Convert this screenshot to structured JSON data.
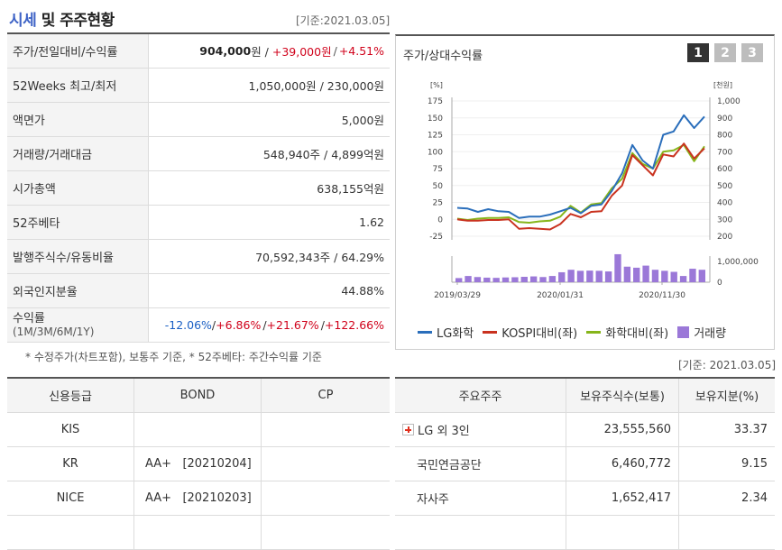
{
  "header": {
    "title_accent": "시세",
    "title_rest": " 및 주주현황",
    "ref_date": "[기준:2021.03.05]"
  },
  "summary": {
    "price_label": "주가/전일대비/수익률",
    "price": "904,000",
    "price_unit": "원 /",
    "change": "+39,000원",
    "change_sep": "/",
    "change_pct": "+4.51%",
    "week52_label": "52Weeks 최고/최저",
    "week52_value": "1,050,000원 / 230,000원",
    "face_label": "액면가",
    "face_value": "5,000원",
    "volume_label": "거래량/거래대금",
    "volume_value": "548,940주 / 4,899억원",
    "mcap_label": "시가총액",
    "mcap_value": "638,155억원",
    "beta_label": "52주베타",
    "beta_value": "1.62",
    "shares_label": "발행주식수/유동비율",
    "shares_value": "70,592,343주 / 64.29%",
    "foreign_label": "외국인지분율",
    "foreign_value": "44.88%",
    "returns_label": "수익률",
    "returns_sub": "(1M/3M/6M/1Y)",
    "return_1m": "-12.06%",
    "return_3m": "+6.86%",
    "return_6m": "+21.67%",
    "return_1y": "+122.66%",
    "slash": "/ "
  },
  "footnote": "* 수정주가(차트포함), 보통주 기준, * 52주베타: 주간수익률 기준",
  "credit": {
    "headers": [
      "신용등급",
      "BOND",
      "CP"
    ],
    "rows": [
      {
        "agency": "KIS",
        "bond": "",
        "cp": ""
      },
      {
        "agency": "KR",
        "bond": "AA+   [20210204]",
        "cp": ""
      },
      {
        "agency": "NICE",
        "bond": "AA+   [20210203]",
        "cp": ""
      },
      {
        "agency": "",
        "bond": "",
        "cp": ""
      }
    ]
  },
  "chart_panel": {
    "title": "주가/상대수익률",
    "tabs": [
      "1",
      "2",
      "3"
    ],
    "active_tab": 0
  },
  "chart_data": {
    "type": "line",
    "left_axis_unit": "[%]",
    "right_axis_unit": "[천원]",
    "left_ticks": [
      "175",
      "150",
      "125",
      "100",
      "75",
      "50",
      "25",
      "0",
      "-25"
    ],
    "right_ticks": [
      "1,000",
      "900",
      "800",
      "700",
      "600",
      "500",
      "400",
      "300",
      "200"
    ],
    "volume_ticks": [
      "1,000,000",
      "0"
    ],
    "x_labels": [
      "2019/03/29",
      "2020/01/31",
      "2020/11/30"
    ],
    "ylim_left": [
      -25,
      175
    ],
    "ylim_right": [
      200,
      1000
    ],
    "volume_max": 1000000,
    "series": [
      {
        "name": "LG화학",
        "color": "#2a6ebb",
        "axis": "left",
        "values": [
          17,
          16,
          11,
          15,
          12,
          11,
          2,
          4,
          4,
          7,
          12,
          17,
          9,
          20,
          22,
          42,
          68,
          110,
          87,
          75,
          125,
          130,
          154,
          135,
          152
        ]
      },
      {
        "name": "KOSPI대비(좌)",
        "color": "#c9321f",
        "axis": "left",
        "values": [
          0,
          -2,
          -2,
          -1,
          -1,
          0,
          -14,
          -13,
          -14,
          -15,
          -7,
          8,
          3,
          11,
          12,
          35,
          50,
          95,
          80,
          65,
          96,
          93,
          112,
          90,
          105
        ]
      },
      {
        "name": "화학대비(좌)",
        "color": "#86b51a",
        "axis": "left",
        "values": [
          1,
          -1,
          1,
          2,
          2,
          3,
          -4,
          -5,
          -3,
          -2,
          4,
          20,
          10,
          22,
          24,
          46,
          60,
          98,
          82,
          75,
          100,
          102,
          110,
          86,
          108
        ]
      }
    ],
    "volume": {
      "name": "거래량",
      "color": "#9b78d8",
      "values": [
        200000,
        300000,
        250000,
        220000,
        210000,
        230000,
        240000,
        260000,
        280000,
        250000,
        300000,
        480000,
        600000,
        550000,
        560000,
        550000,
        520000,
        1350000,
        750000,
        700000,
        800000,
        600000,
        550000,
        500000,
        300000,
        650000,
        600000
      ]
    }
  },
  "legend": [
    {
      "name": "LG화학",
      "color": "#2a6ebb",
      "kind": "line"
    },
    {
      "name": "KOSPI대비(좌)",
      "color": "#c9321f",
      "kind": "line"
    },
    {
      "name": "화학대비(좌)",
      "color": "#86b51a",
      "kind": "line"
    },
    {
      "name": "거래량",
      "color": "#9b78d8",
      "kind": "box"
    }
  ],
  "holders": {
    "ref_date": "[기준: 2021.03.05]",
    "headers": [
      "주요주주",
      "보유주식수(보통)",
      "보유지분(%)"
    ],
    "rows": [
      {
        "name": "LG 외 3인",
        "shares": "23,555,560",
        "pct": "33.37",
        "expandable": true
      },
      {
        "name": "국민연금공단",
        "shares": "6,460,772",
        "pct": "9.15",
        "expandable": false
      },
      {
        "name": "자사주",
        "shares": "1,652,417",
        "pct": "2.34",
        "expandable": false
      },
      {
        "name": "",
        "shares": "",
        "pct": "",
        "expandable": false
      }
    ]
  }
}
